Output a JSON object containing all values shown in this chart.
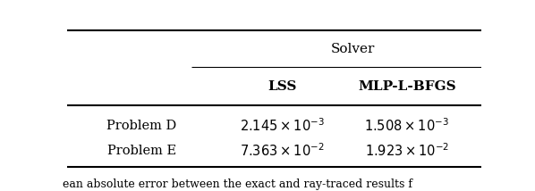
{
  "title": "Solver",
  "col1_header": "LSS",
  "col2_header": "MLP-L-BFGS",
  "rows": [
    {
      "label": "Problem D",
      "lss": "2.145 \\times 10^{-3}",
      "mlp": "1.508 \\times 10^{-3}"
    },
    {
      "label": "Problem E",
      "lss": "7.363 \\times 10^{-2}",
      "mlp": "1.923 \\times 10^{-2}"
    }
  ],
  "caption": "ean absolute error between the exact and ray-traced results f",
  "bg_color": "#ffffff",
  "text_color": "#000000",
  "figsize": [
    5.98,
    2.14
  ],
  "dpi": 100
}
